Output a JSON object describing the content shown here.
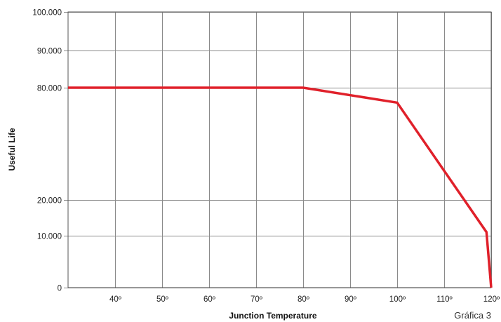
{
  "chart_data": {
    "type": "line",
    "xlabel": "Junction Temperature",
    "ylabel": "Useful Life",
    "caption": "Gráfica 3",
    "x_ticks": [
      {
        "value": 40,
        "label": "40º"
      },
      {
        "value": 50,
        "label": "50º"
      },
      {
        "value": 60,
        "label": "60º"
      },
      {
        "value": 70,
        "label": "70º"
      },
      {
        "value": 80,
        "label": "80º"
      },
      {
        "value": 90,
        "label": "90º"
      },
      {
        "value": 100,
        "label": "100º"
      },
      {
        "value": 110,
        "label": "110º"
      },
      {
        "value": 120,
        "label": "120º"
      }
    ],
    "y_ticks": [
      {
        "value": 0,
        "label": "0"
      },
      {
        "value": 10000,
        "label": "10.000"
      },
      {
        "value": 20000,
        "label": "20.000"
      },
      {
        "value": 80000,
        "label": "80.000"
      },
      {
        "value": 90000,
        "label": "90.000"
      },
      {
        "value": 100000,
        "label": "100.000"
      }
    ],
    "x_range": [
      30,
      120
    ],
    "y_range": [
      0,
      100000
    ],
    "grid": true,
    "series": [
      {
        "color": "#e0202a",
        "points": [
          {
            "x": 30,
            "y": 80000
          },
          {
            "x": 80,
            "y": 80000
          },
          {
            "x": 100,
            "y": 72000
          },
          {
            "x": 119,
            "y": 11000
          },
          {
            "x": 120,
            "y": 0
          }
        ]
      }
    ]
  }
}
